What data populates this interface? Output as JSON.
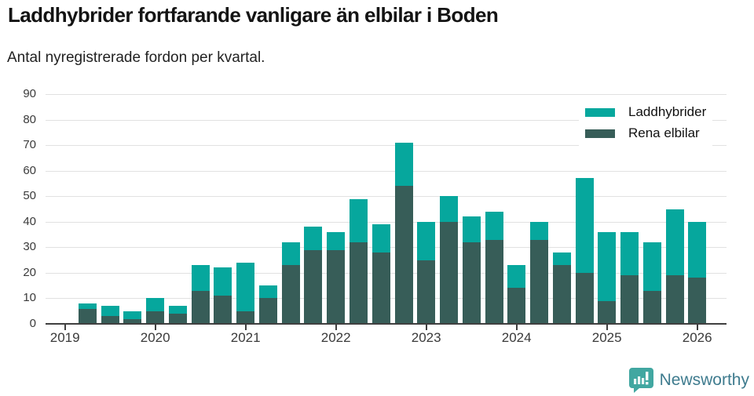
{
  "header": {
    "title": "Laddhybrider fortfarande vanligare än elbilar i Boden",
    "subtitle": "Antal nyregistrerade fordon per kvartal."
  },
  "chart_data": {
    "type": "bar",
    "stacked": true,
    "title": "Laddhybrider fortfarande vanligare än elbilar i Boden",
    "subtitle": "Antal nyregistrerade fordon per kvartal.",
    "categories": [
      "2019 Q2",
      "2019 Q3",
      "2019 Q4",
      "2020 Q1",
      "2020 Q2",
      "2020 Q3",
      "2020 Q4",
      "2021 Q1",
      "2021 Q2",
      "2021 Q3",
      "2021 Q4",
      "2022 Q1",
      "2022 Q2",
      "2022 Q3",
      "2022 Q4",
      "2023 Q1",
      "2023 Q2",
      "2023 Q3",
      "2023 Q4",
      "2024 Q1",
      "2024 Q2",
      "2024 Q3",
      "2024 Q4",
      "2025 Q1",
      "2025 Q2",
      "2025 Q3",
      "2025 Q4",
      "2026 Q1"
    ],
    "series": [
      {
        "name": "Laddhybrider",
        "color": "#06a79d",
        "values": [
          2,
          4,
          3,
          5,
          3,
          10,
          11,
          19,
          5,
          9,
          9,
          7,
          17,
          11,
          17,
          15,
          10,
          10,
          11,
          9,
          7,
          5,
          37,
          27,
          17,
          19,
          26,
          22
        ]
      },
      {
        "name": "Rena elbilar",
        "color": "#375d58",
        "values": [
          6,
          3,
          2,
          5,
          4,
          13,
          11,
          5,
          10,
          23,
          29,
          29,
          32,
          28,
          54,
          25,
          40,
          32,
          33,
          14,
          33,
          23,
          20,
          9,
          19,
          13,
          19,
          18
        ]
      }
    ],
    "totals": [
      8,
      7,
      5,
      10,
      7,
      23,
      22,
      24,
      15,
      32,
      38,
      36,
      49,
      39,
      71,
      40,
      50,
      42,
      44,
      23,
      40,
      28,
      57,
      36,
      36,
      32,
      45,
      40
    ],
    "stack_order_bottom_to_top": [
      "Rena elbilar",
      "Laddhybrider"
    ],
    "y_ticks": [
      0,
      10,
      20,
      30,
      40,
      50,
      60,
      70,
      80,
      90
    ],
    "ylim": [
      0,
      90
    ],
    "x_tick_labels": [
      "2019",
      "2020",
      "2021",
      "2022",
      "2023",
      "2024",
      "2025",
      "2026"
    ],
    "grid": "horizontal",
    "legend_position": "top-right"
  },
  "footer": {
    "brand": "Newsworthy",
    "logo_icon": "newsworthy-speech-bubble-chart-icon"
  },
  "colors": {
    "laddhybrider": "#06a79d",
    "rena_elbilar": "#375d58",
    "gridline": "#e1e1e1",
    "axis": "#3f3f3f",
    "tick_text": "#3a3a3a",
    "brand_text": "#3e7b8e",
    "logo_fill": "#41a7a1"
  }
}
